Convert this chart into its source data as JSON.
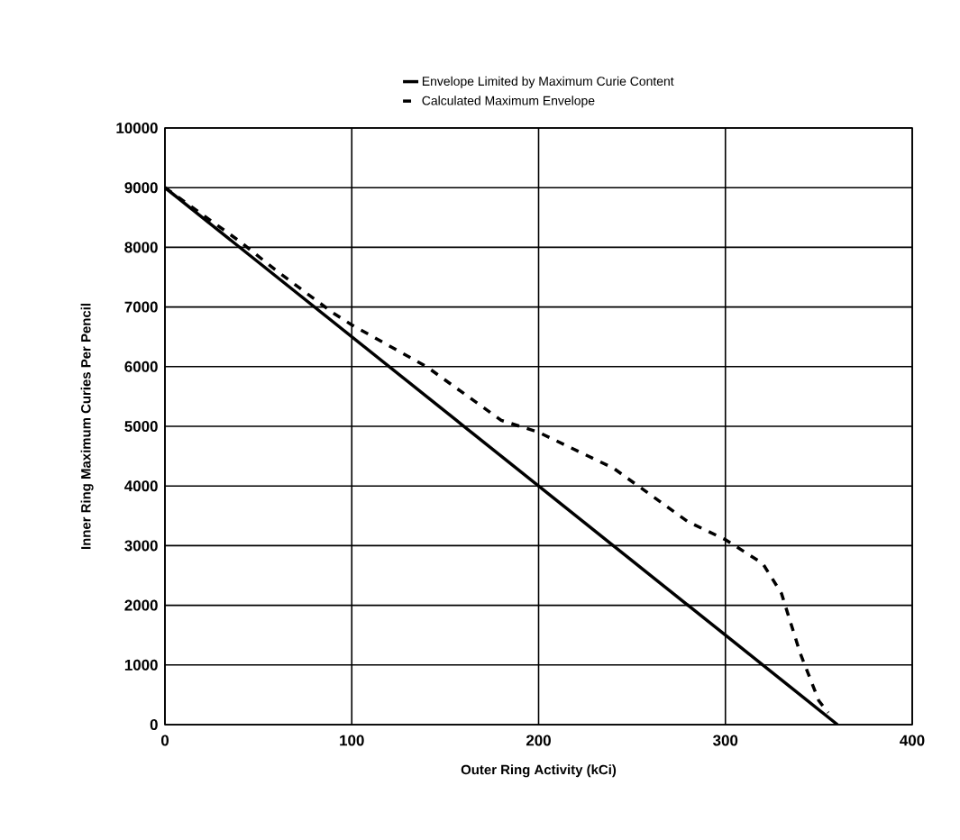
{
  "chart_data": {
    "type": "line",
    "xlabel": "Outer Ring Activity (kCi)",
    "ylabel": "Inner Ring Maximum Curies Per Pencil",
    "xlim": [
      0,
      400
    ],
    "ylim": [
      0,
      10000
    ],
    "xticks": [
      0,
      100,
      200,
      300,
      400
    ],
    "yticks": [
      0,
      1000,
      2000,
      3000,
      4000,
      5000,
      6000,
      7000,
      8000,
      9000,
      10000
    ],
    "grid": true,
    "legend": "top",
    "series": [
      {
        "name": "Envelope Limited by Maximum Curie Content",
        "color": "#000000",
        "line_style": "solid",
        "x": [
          0,
          360
        ],
        "values": [
          9000,
          0
        ]
      },
      {
        "name": "Calculated Maximum Envelope",
        "color": "#000000",
        "line_style": "dashed",
        "x": [
          0,
          40,
          60,
          90,
          100,
          140,
          180,
          200,
          240,
          280,
          300,
          320,
          330,
          340,
          350,
          355
        ],
        "values": [
          9000,
          8100,
          7600,
          6900,
          6700,
          6000,
          5100,
          4900,
          4300,
          3400,
          3100,
          2700,
          2200,
          1200,
          400,
          200
        ]
      }
    ]
  }
}
